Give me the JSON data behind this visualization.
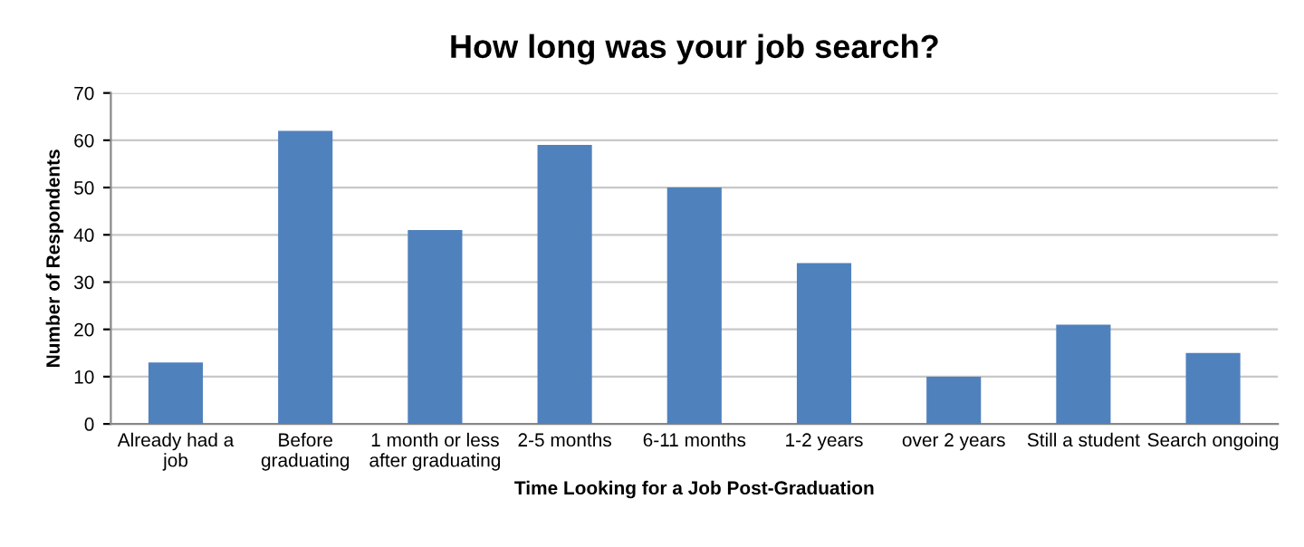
{
  "chart_data": {
    "type": "bar",
    "title": "How long was your job search?",
    "xlabel": "Time Looking for a Job Post-Graduation",
    "ylabel": "Number of Respondents",
    "categories": [
      "Already had a\njob",
      "Before\ngraduating",
      "1 month or less\nafter graduating",
      "2-5 months",
      "6-11 months",
      "1-2 years",
      "over 2 years",
      "Still a student",
      "Search ongoing"
    ],
    "values": [
      13,
      62,
      41,
      59,
      50,
      34,
      10,
      21,
      15
    ],
    "color": "#4f81bd",
    "ylim": [
      0,
      70
    ],
    "yticks": [
      0,
      10,
      20,
      30,
      40,
      50,
      60,
      70
    ],
    "grid": "y",
    "legend": false
  }
}
